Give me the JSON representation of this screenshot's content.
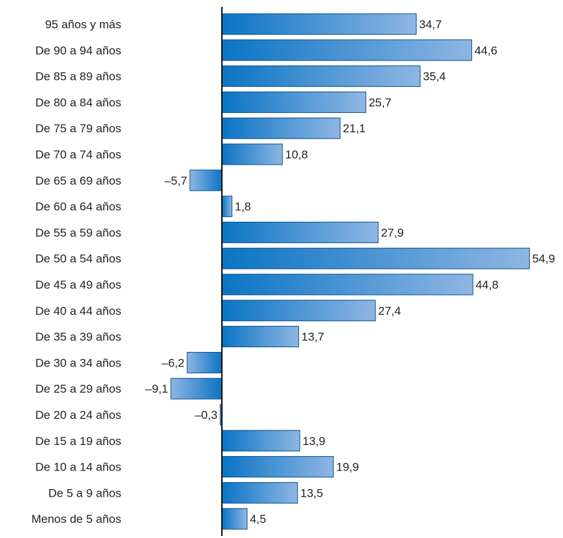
{
  "chart_data": {
    "type": "bar",
    "orientation": "horizontal",
    "categories": [
      "95 años y más",
      "De 90 a 94 años",
      "De 85 a 89 años",
      "De 80 a 84 años",
      "De 75 a 79 años",
      "De 70 a 74 años",
      "De 65 a 69 años",
      "De 60 a 64 años",
      "De 55 a 59 años",
      "De 50 a 54 años",
      "De 45 a 49 años",
      "De 40 a 44 años",
      "De 35 a 39 años",
      "De 30 a 34 años",
      "De 25 a 29 años",
      "De 20 a 24 años",
      "De 15 a 19 años",
      "De 10 a 14 años",
      "De 5 a 9 años",
      "Menos de 5 años"
    ],
    "values": [
      34.7,
      44.6,
      35.4,
      25.7,
      21.1,
      10.8,
      -5.7,
      1.8,
      27.9,
      54.9,
      44.8,
      27.4,
      13.7,
      -6.2,
      -9.1,
      -0.3,
      13.9,
      19.9,
      13.5,
      4.5
    ],
    "value_labels": [
      "34,7",
      "44,6",
      "35,4",
      "25,7",
      "21,1",
      "10,8",
      "–5,7",
      "1,8",
      "27,9",
      "54,9",
      "44,8",
      "27,4",
      "13,7",
      "–6,2",
      "–9,1",
      "–0,3",
      "13,9",
      "19,9",
      "13,5",
      "4,5"
    ],
    "title": "",
    "xlabel": "",
    "ylabel": "",
    "xlim": [
      -9.1,
      54.9
    ],
    "grid": false,
    "colors": {
      "bar_dark": "#0a74c4",
      "bar_light": "#8fb6e3",
      "bar_border": "#0b4f8a",
      "axis": "#111111",
      "text": "#222222"
    }
  }
}
